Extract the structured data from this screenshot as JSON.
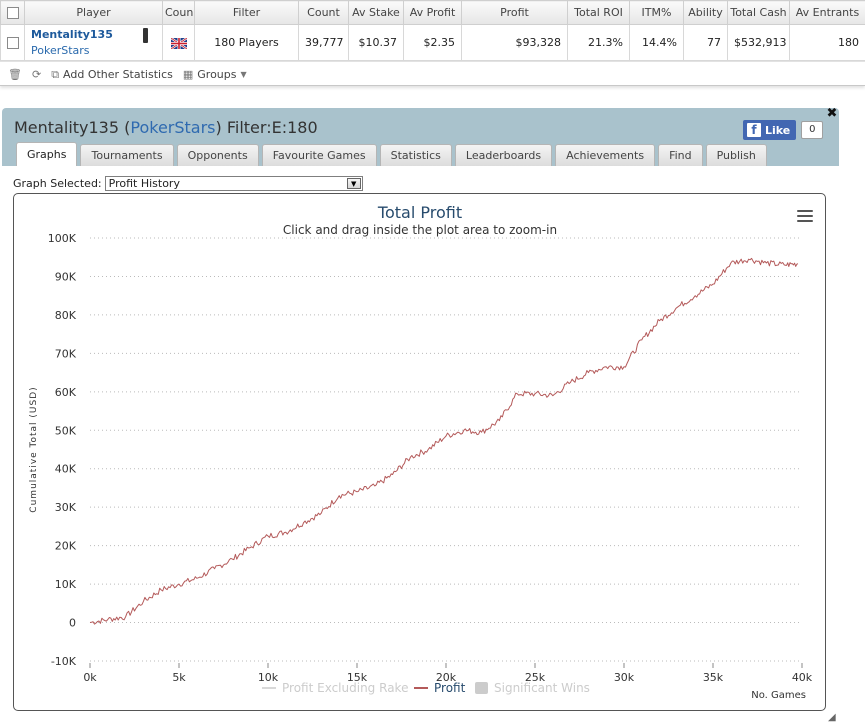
{
  "stats_table": {
    "headers": [
      "Player",
      "Coun",
      "Filter",
      "Count",
      "Av Stake",
      "Av Profit",
      "Profit",
      "Total ROI",
      "ITM%",
      "Ability",
      "Total Cash",
      "Av Entrants"
    ],
    "row": {
      "player_name": "Mentality135",
      "site": "PokerStars",
      "country": "GB",
      "filter": "180 Players",
      "count": "39,777",
      "av_stake": "$10.37",
      "av_profit": "$2.35",
      "profit": "$93,328",
      "total_roi": "21.3%",
      "itm": "14.4%",
      "ability": "77",
      "total_cash": "$532,913",
      "av_entrants": "180"
    }
  },
  "toolbar": {
    "add_stats_label": "Add Other Statistics",
    "groups_label": "Groups"
  },
  "panel": {
    "player": "Mentality135",
    "site_open": " (",
    "site": "PokerStars",
    "site_close": ")",
    "filter_label": " Filter:E:180",
    "fb_like": "Like",
    "fb_count": "0",
    "tabs": [
      "Graphs",
      "Tournaments",
      "Opponents",
      "Favourite Games",
      "Statistics",
      "Leaderboards",
      "Achievements",
      "Find",
      "Publish"
    ],
    "graph_selected_label": "Graph Selected:",
    "graph_selected_value": "Profit History"
  },
  "colors": {
    "profit_line": "#b45a5a",
    "panel_bg": "#a9c2cc",
    "title_blue": "#274b6d"
  },
  "chart_data": {
    "type": "line",
    "title": "Total Profit",
    "subtitle": "Click and drag inside the plot area to zoom-in",
    "xlabel": "No. Games",
    "ylabel": "Cumulative Total (USD)",
    "xlim": [
      0,
      40000
    ],
    "ylim": [
      -10000,
      100000
    ],
    "x_ticks": [
      "0k",
      "5k",
      "10k",
      "15k",
      "20k",
      "25k",
      "30k",
      "35k",
      "40k"
    ],
    "y_ticks": [
      "-10K",
      "0",
      "10K",
      "20K",
      "30K",
      "40K",
      "50K",
      "60K",
      "70K",
      "80K",
      "90K",
      "100K"
    ],
    "grid": true,
    "legend_position": "bottom",
    "legend": [
      "Profit Excluding Rake",
      "Profit",
      "Significant Wins"
    ],
    "series": [
      {
        "name": "Profit",
        "x": [
          0,
          1000,
          2000,
          3000,
          4000,
          5000,
          6000,
          7000,
          8000,
          9000,
          10000,
          11000,
          12000,
          13000,
          14000,
          15000,
          16000,
          17000,
          18000,
          19000,
          20000,
          21000,
          22000,
          23000,
          24000,
          25000,
          26000,
          27000,
          28000,
          29000,
          30000,
          31000,
          32000,
          33000,
          34000,
          35000,
          36000,
          37000,
          38000,
          39000,
          39777
        ],
        "y": [
          0,
          800,
          1500,
          5500,
          8500,
          10000,
          11500,
          14000,
          16500,
          19500,
          22500,
          23500,
          26000,
          28500,
          33000,
          34000,
          35500,
          38500,
          43000,
          45000,
          48500,
          50000,
          49500,
          52500,
          59500,
          59500,
          59000,
          62500,
          65000,
          66500,
          66500,
          73500,
          78500,
          82000,
          85000,
          88000,
          93500,
          94500,
          93500,
          93000,
          93328
        ]
      }
    ]
  }
}
